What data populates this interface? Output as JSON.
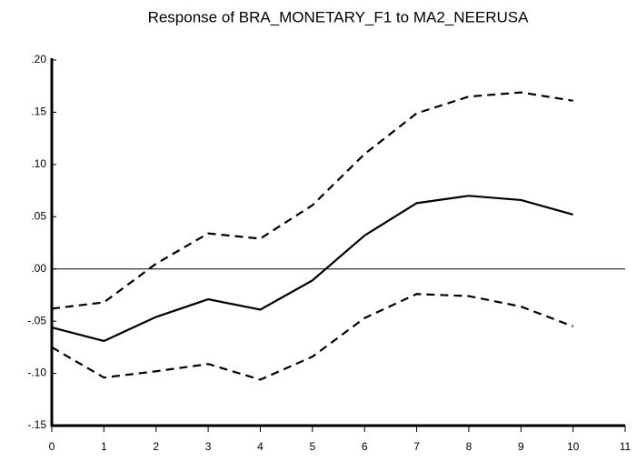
{
  "chart_data": {
    "type": "line",
    "title": "Response of BRA_MONETARY_F1 to MA2_NEERUSA",
    "x": [
      0,
      1,
      2,
      3,
      4,
      5,
      6,
      7,
      8,
      9,
      10
    ],
    "series": [
      {
        "color": "#000000",
        "style": "solid",
        "values": [
          -0.056,
          -0.069,
          -0.046,
          -0.029,
          -0.039,
          -0.011,
          0.032,
          0.063,
          0.07,
          0.066,
          0.052
        ]
      },
      {
        "color": "#000000",
        "style": "dashed",
        "values": [
          -0.038,
          -0.032,
          0.005,
          0.034,
          0.029,
          0.061,
          0.11,
          0.149,
          0.165,
          0.169,
          0.161
        ]
      },
      {
        "color": "#000000",
        "style": "dashed",
        "values": [
          -0.075,
          -0.104,
          -0.098,
          -0.091,
          -0.106,
          -0.084,
          -0.047,
          -0.024,
          -0.026,
          -0.036,
          -0.055
        ]
      }
    ],
    "xlim": [
      0,
      11
    ],
    "xticks": [
      0,
      1,
      2,
      3,
      4,
      5,
      6,
      7,
      8,
      9,
      10,
      11
    ],
    "ylim": [
      -0.15,
      0.2
    ],
    "yticks": [
      {
        "value": -0.15,
        "label": "-.15"
      },
      {
        "value": -0.1,
        "label": "-.10"
      },
      {
        "value": -0.05,
        "label": "-.05"
      },
      {
        "value": 0,
        "label": ".00"
      },
      {
        "value": 0.05,
        "label": ".05"
      },
      {
        "value": 0.1,
        "label": ".10"
      },
      {
        "value": 0.15,
        "label": ".15"
      },
      {
        "value": 0.2,
        "label": ".20"
      }
    ],
    "zero_line": true
  }
}
